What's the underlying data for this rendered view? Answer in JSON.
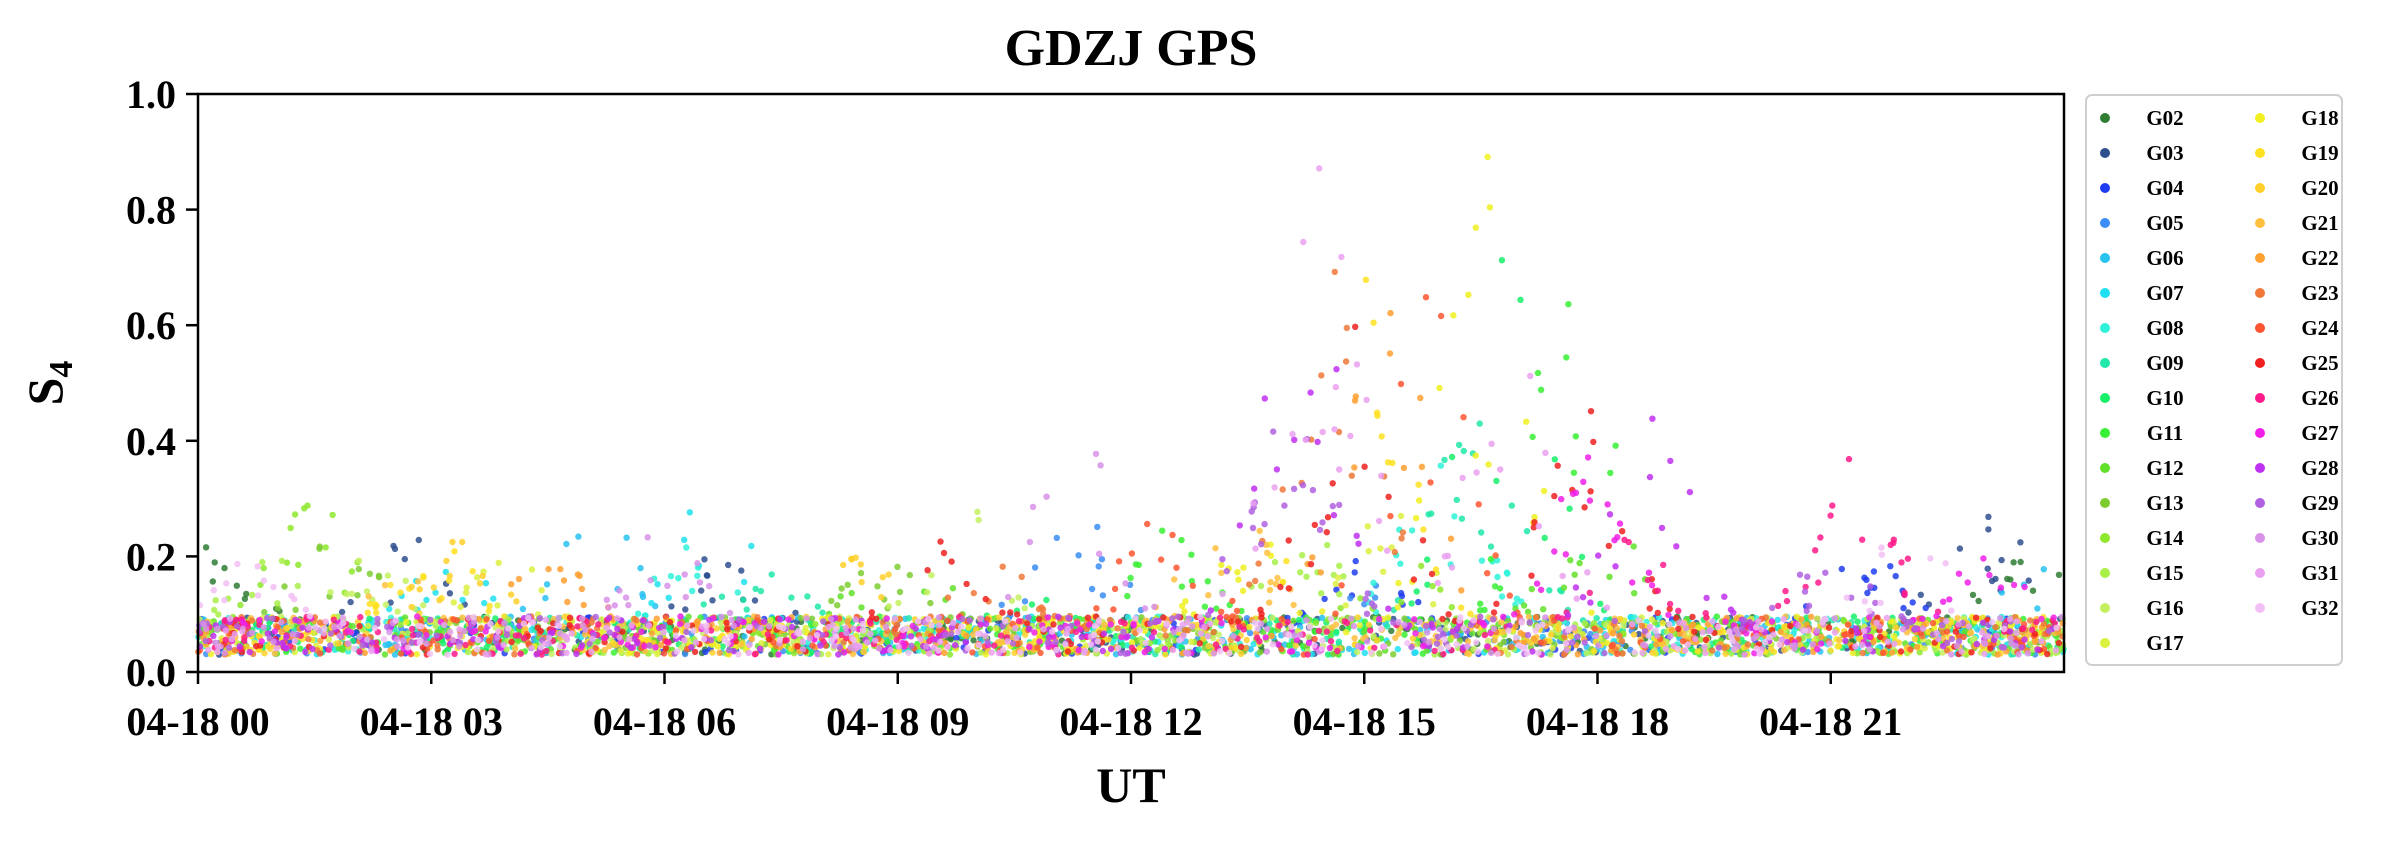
{
  "chart_data": {
    "type": "scatter",
    "title": "GDZJ GPS",
    "xlabel": "UT",
    "ylabel": "S",
    "ylabel_sub": "4",
    "xlim": [
      "04-18 00",
      "04-19 00"
    ],
    "ylim": [
      0.0,
      1.0
    ],
    "x_ticks": [
      "04-18 00",
      "04-18 03",
      "04-18 06",
      "04-18 09",
      "04-18 12",
      "04-18 15",
      "04-18 18",
      "04-18 21"
    ],
    "y_ticks": [
      "0.0",
      "0.2",
      "0.4",
      "0.6",
      "0.8",
      "1.0"
    ],
    "grid": false,
    "legend_position": "outside-right",
    "legend_columns": 2,
    "series": [
      {
        "name": "G02",
        "color": "#2e7d32",
        "base": 0.06,
        "active": [
          [
            0.0,
            24.0
          ]
        ],
        "peaks": [
          [
            0.2,
            0.22
          ],
          [
            23.5,
            0.22
          ]
        ]
      },
      {
        "name": "G03",
        "color": "#2f4f8f",
        "base": 0.06,
        "active": [
          [
            0.0,
            24.0
          ]
        ],
        "peaks": [
          [
            2.8,
            0.25
          ],
          [
            6.8,
            0.22
          ],
          [
            23.0,
            0.3
          ]
        ]
      },
      {
        "name": "G04",
        "color": "#1f3df0",
        "base": 0.06,
        "active": [
          [
            0.0,
            24.0
          ]
        ],
        "peaks": [
          [
            15.0,
            0.2
          ],
          [
            21.5,
            0.22
          ]
        ]
      },
      {
        "name": "G05",
        "color": "#3a8ef5",
        "base": 0.06,
        "active": [
          [
            0.0,
            24.0
          ]
        ],
        "peaks": [
          [
            11.3,
            0.3
          ],
          [
            14.8,
            0.18
          ]
        ]
      },
      {
        "name": "G06",
        "color": "#27c2f0",
        "base": 0.06,
        "active": [
          [
            0.0,
            24.0
          ]
        ],
        "peaks": [
          [
            5.1,
            0.3
          ],
          [
            23.8,
            0.2
          ]
        ]
      },
      {
        "name": "G07",
        "color": "#1ee0f0",
        "base": 0.06,
        "active": [
          [
            0.0,
            24.0
          ]
        ],
        "peaks": [
          [
            3.2,
            0.2
          ],
          [
            6.6,
            0.32
          ]
        ]
      },
      {
        "name": "G08",
        "color": "#2ef2d8",
        "base": 0.06,
        "active": [
          [
            0.0,
            24.0
          ]
        ],
        "peaks": [
          [
            6.3,
            0.22
          ],
          [
            16.0,
            0.4
          ]
        ]
      },
      {
        "name": "G09",
        "color": "#20e8a8",
        "base": 0.06,
        "active": [
          [
            0.0,
            24.0
          ]
        ],
        "peaks": [
          [
            7.2,
            0.2
          ],
          [
            16.5,
            0.5
          ]
        ]
      },
      {
        "name": "G10",
        "color": "#18f06a",
        "base": 0.06,
        "active": [
          [
            0.0,
            24.0
          ]
        ],
        "peaks": [
          [
            16.8,
            0.75
          ],
          [
            10.5,
            0.15
          ]
        ]
      },
      {
        "name": "G11",
        "color": "#38f034",
        "base": 0.06,
        "active": [
          [
            0.0,
            24.0
          ]
        ],
        "peaks": [
          [
            17.6,
            0.7
          ],
          [
            12.5,
            0.25
          ]
        ]
      },
      {
        "name": "G12",
        "color": "#60e028",
        "base": 0.06,
        "active": [
          [
            0.0,
            24.0
          ]
        ],
        "peaks": [
          [
            9.0,
            0.25
          ],
          [
            18.0,
            0.35
          ]
        ]
      },
      {
        "name": "G13",
        "color": "#7ccc30",
        "base": 0.06,
        "active": [
          [
            0.0,
            24.0
          ]
        ],
        "peaks": [
          [
            1.8,
            0.25
          ],
          [
            8.8,
            0.2
          ]
        ]
      },
      {
        "name": "G14",
        "color": "#8ee82c",
        "base": 0.06,
        "active": [
          [
            0.0,
            24.0
          ]
        ],
        "peaks": [
          [
            1.5,
            0.3
          ],
          [
            15.5,
            0.2
          ]
        ]
      },
      {
        "name": "G15",
        "color": "#a8f048",
        "base": 0.06,
        "active": [
          [
            0.0,
            24.0
          ]
        ],
        "peaks": [
          [
            0.9,
            0.2
          ],
          [
            14.2,
            0.25
          ]
        ]
      },
      {
        "name": "G16",
        "color": "#c4f060",
        "base": 0.06,
        "active": [
          [
            0.0,
            24.0
          ]
        ],
        "peaks": [
          [
            2.2,
            0.2
          ],
          [
            9.8,
            0.3
          ]
        ]
      },
      {
        "name": "G17",
        "color": "#dcf040",
        "base": 0.06,
        "active": [
          [
            0.0,
            24.0
          ]
        ],
        "peaks": [
          [
            15.3,
            0.3
          ],
          [
            4.0,
            0.2
          ]
        ]
      },
      {
        "name": "G18",
        "color": "#f0f020",
        "base": 0.06,
        "active": [
          [
            0.0,
            24.0
          ]
        ],
        "peaks": [
          [
            16.6,
            0.9
          ],
          [
            13.5,
            0.25
          ]
        ]
      },
      {
        "name": "G19",
        "color": "#ffe020",
        "base": 0.06,
        "active": [
          [
            0.0,
            24.0
          ]
        ],
        "peaks": [
          [
            15.0,
            0.85
          ],
          [
            3.0,
            0.25
          ]
        ]
      },
      {
        "name": "G20",
        "color": "#ffd02a",
        "base": 0.06,
        "active": [
          [
            0.0,
            24.0
          ]
        ],
        "peaks": [
          [
            3.5,
            0.28
          ],
          [
            8.5,
            0.2
          ]
        ]
      },
      {
        "name": "G21",
        "color": "#ffc040",
        "base": 0.06,
        "active": [
          [
            0.0,
            24.0
          ]
        ],
        "peaks": [
          [
            2.6,
            0.2
          ],
          [
            13.3,
            0.3
          ]
        ]
      },
      {
        "name": "G22",
        "color": "#ffa030",
        "base": 0.06,
        "active": [
          [
            0.0,
            24.0
          ]
        ],
        "peaks": [
          [
            15.2,
            0.8
          ],
          [
            4.5,
            0.2
          ]
        ]
      },
      {
        "name": "G23",
        "color": "#f07838",
        "base": 0.06,
        "active": [
          [
            0.0,
            24.0
          ]
        ],
        "peaks": [
          [
            14.6,
            0.75
          ],
          [
            10.3,
            0.2
          ]
        ]
      },
      {
        "name": "G24",
        "color": "#ff5530",
        "base": 0.06,
        "active": [
          [
            0.0,
            24.0
          ]
        ],
        "peaks": [
          [
            15.8,
            0.7
          ],
          [
            12.4,
            0.3
          ]
        ]
      },
      {
        "name": "G25",
        "color": "#f02020",
        "base": 0.06,
        "active": [
          [
            0.0,
            24.0
          ]
        ],
        "peaks": [
          [
            14.9,
            0.65
          ],
          [
            17.8,
            0.5
          ],
          [
            9.6,
            0.25
          ]
        ]
      },
      {
        "name": "G26",
        "color": "#ff1a8a",
        "base": 0.06,
        "active": [
          [
            0.0,
            24.0
          ]
        ],
        "peaks": [
          [
            18.5,
            0.25
          ],
          [
            21.3,
            0.4
          ]
        ]
      },
      {
        "name": "G27",
        "color": "#f020e8",
        "base": 0.06,
        "active": [
          [
            0.0,
            24.0
          ]
        ],
        "peaks": [
          [
            18.0,
            0.4
          ],
          [
            23.0,
            0.2
          ]
        ]
      },
      {
        "name": "G28",
        "color": "#c030f0",
        "base": 0.06,
        "active": [
          [
            0.0,
            24.0
          ]
        ],
        "peaks": [
          [
            14.2,
            0.7
          ],
          [
            18.7,
            0.45
          ]
        ]
      },
      {
        "name": "G29",
        "color": "#b060e0",
        "base": 0.06,
        "active": [
          [
            0.0,
            24.0
          ]
        ],
        "peaks": [
          [
            14.0,
            0.55
          ],
          [
            21.0,
            0.2
          ]
        ]
      },
      {
        "name": "G30",
        "color": "#d890e8",
        "base": 0.06,
        "active": [
          [
            0.0,
            24.0
          ]
        ],
        "peaks": [
          [
            11.2,
            0.45
          ],
          [
            6.0,
            0.25
          ]
        ]
      },
      {
        "name": "G31",
        "color": "#eaa0f0",
        "base": 0.06,
        "active": [
          [
            0.0,
            24.0
          ]
        ],
        "peaks": [
          [
            14.4,
            0.9
          ],
          [
            16.9,
            0.6
          ]
        ]
      },
      {
        "name": "G32",
        "color": "#f2c0f4",
        "base": 0.06,
        "active": [
          [
            0.0,
            24.0
          ]
        ],
        "peaks": [
          [
            22.0,
            0.25
          ],
          [
            0.6,
            0.2
          ]
        ]
      }
    ]
  }
}
